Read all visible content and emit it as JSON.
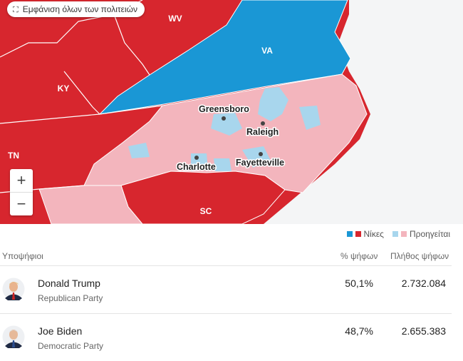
{
  "map": {
    "button": "Εμφάνιση όλων των πολιτειών",
    "state_labels": [
      "WV",
      "VA",
      "KY",
      "TN",
      "SC"
    ],
    "cities": [
      "Greensboro",
      "Raleigh",
      "Charlotte",
      "Fayetteville"
    ],
    "zoom_in": "+",
    "zoom_out": "−"
  },
  "legend": {
    "won": "Νίκες",
    "leading": "Προηγείται"
  },
  "table": {
    "headers": [
      "Υποψήφιοι",
      "% ψήφων",
      "Πλήθος ψήφων"
    ],
    "rows": [
      {
        "name": "Donald Trump",
        "party": "Republican Party",
        "percent": "50,1%",
        "votes": "2.732.084"
      },
      {
        "name": "Joe Biden",
        "party": "Democratic Party",
        "percent": "48,7%",
        "votes": "2.655.383"
      }
    ]
  }
}
